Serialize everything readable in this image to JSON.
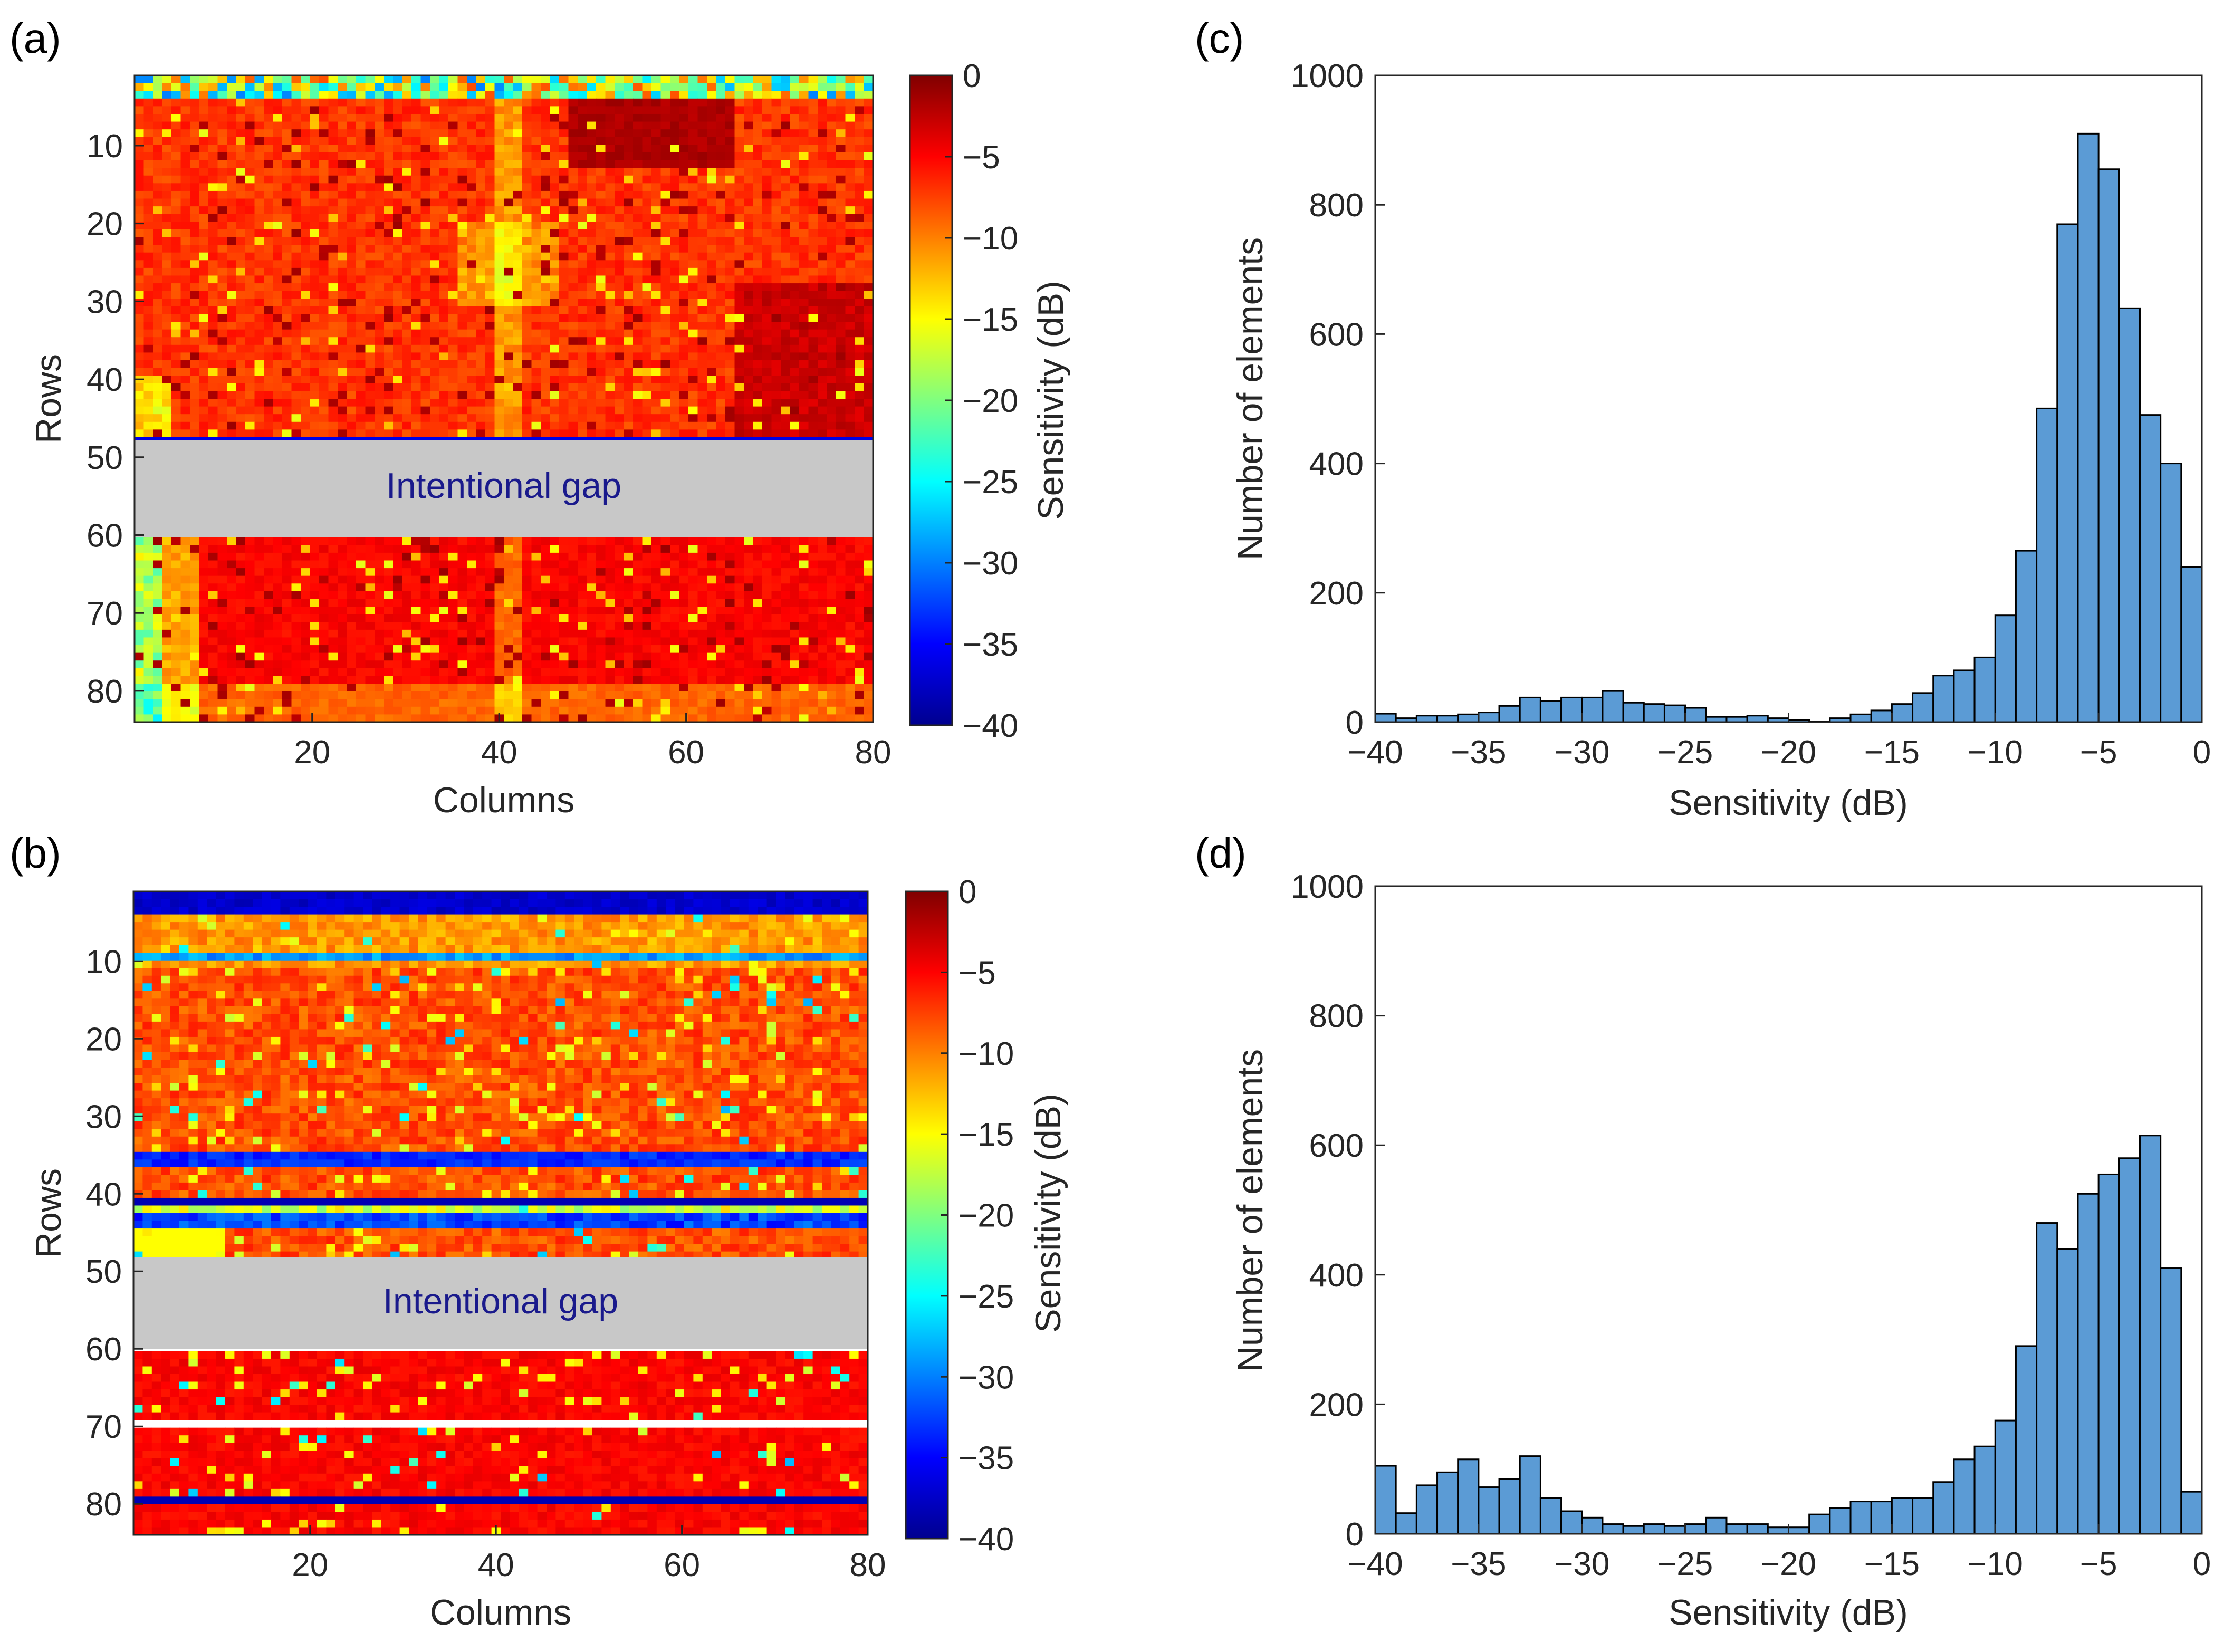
{
  "chart_data": [
    {
      "panel": "(a)",
      "type": "heatmap",
      "xlabel": "Columns",
      "ylabel": "Rows",
      "xticks": [
        "20",
        "40",
        "60",
        "80"
      ],
      "yticks": [
        "10",
        "20",
        "30",
        "40",
        "50",
        "60",
        "70",
        "80"
      ],
      "xlim": [
        1,
        80
      ],
      "ylim": [
        1,
        84
      ],
      "gap_rows": [
        49,
        60
      ],
      "gap_label": "Intentional gap",
      "colorbar": {
        "label": "Sensitivity (dB)",
        "ticks": [
          "0",
          "−5",
          "−10",
          "−15",
          "−20",
          "−25",
          "−30",
          "−35",
          "−40"
        ],
        "range": [
          -40,
          0
        ]
      }
    },
    {
      "panel": "(b)",
      "type": "heatmap",
      "xlabel": "Columns",
      "ylabel": "Rows",
      "xticks": [
        "20",
        "40",
        "60",
        "80"
      ],
      "yticks": [
        "10",
        "20",
        "30",
        "40",
        "50",
        "60",
        "70",
        "80"
      ],
      "xlim": [
        1,
        80
      ],
      "ylim": [
        1,
        84
      ],
      "gap_rows": [
        49,
        60
      ],
      "gap_label": "Intentional gap",
      "colorbar": {
        "label": "Sensitivity (dB)",
        "ticks": [
          "0",
          "−5",
          "−10",
          "−15",
          "−20",
          "−25",
          "−30",
          "−35",
          "−40"
        ],
        "range": [
          -40,
          0
        ]
      }
    },
    {
      "panel": "(c)",
      "type": "bar",
      "xlabel": "Sensitivity (dB)",
      "ylabel": "Number of elements",
      "xlim": [
        -40,
        0
      ],
      "ylim": [
        0,
        1000
      ],
      "xticks": [
        "−40",
        "−35",
        "−30",
        "−25",
        "−20",
        "−15",
        "−10",
        "−5",
        "0"
      ],
      "yticks": [
        "0",
        "200",
        "400",
        "600",
        "800",
        "1000"
      ],
      "bin_width": 1,
      "bin_start": -40,
      "values": [
        13,
        6,
        10,
        10,
        12,
        15,
        25,
        38,
        33,
        38,
        38,
        48,
        30,
        28,
        26,
        22,
        8,
        8,
        10,
        6,
        3,
        1,
        6,
        12,
        18,
        28,
        45,
        72,
        80,
        100,
        165,
        265,
        485,
        770,
        910,
        855,
        640,
        475,
        400,
        240
      ]
    },
    {
      "panel": "(d)",
      "type": "bar",
      "xlabel": "Sensitivity (dB)",
      "ylabel": "Number of elements",
      "xlim": [
        -40,
        0
      ],
      "ylim": [
        0,
        1000
      ],
      "xticks": [
        "−40",
        "−35",
        "−30",
        "−25",
        "−20",
        "−15",
        "−10",
        "−5",
        "0"
      ],
      "yticks": [
        "0",
        "200",
        "400",
        "600",
        "800",
        "1000"
      ],
      "bin_width": 1,
      "bin_start": -40,
      "values": [
        105,
        32,
        75,
        95,
        115,
        72,
        85,
        120,
        55,
        35,
        25,
        15,
        12,
        15,
        12,
        15,
        25,
        15,
        15,
        10,
        10,
        30,
        40,
        50,
        50,
        55,
        55,
        80,
        115,
        135,
        175,
        290,
        480,
        440,
        525,
        555,
        580,
        615,
        410,
        65
      ]
    }
  ],
  "colors": {
    "bar_fill": "#5b9bd5",
    "bar_edge": "#000000",
    "gap": "#c8c8c8"
  }
}
